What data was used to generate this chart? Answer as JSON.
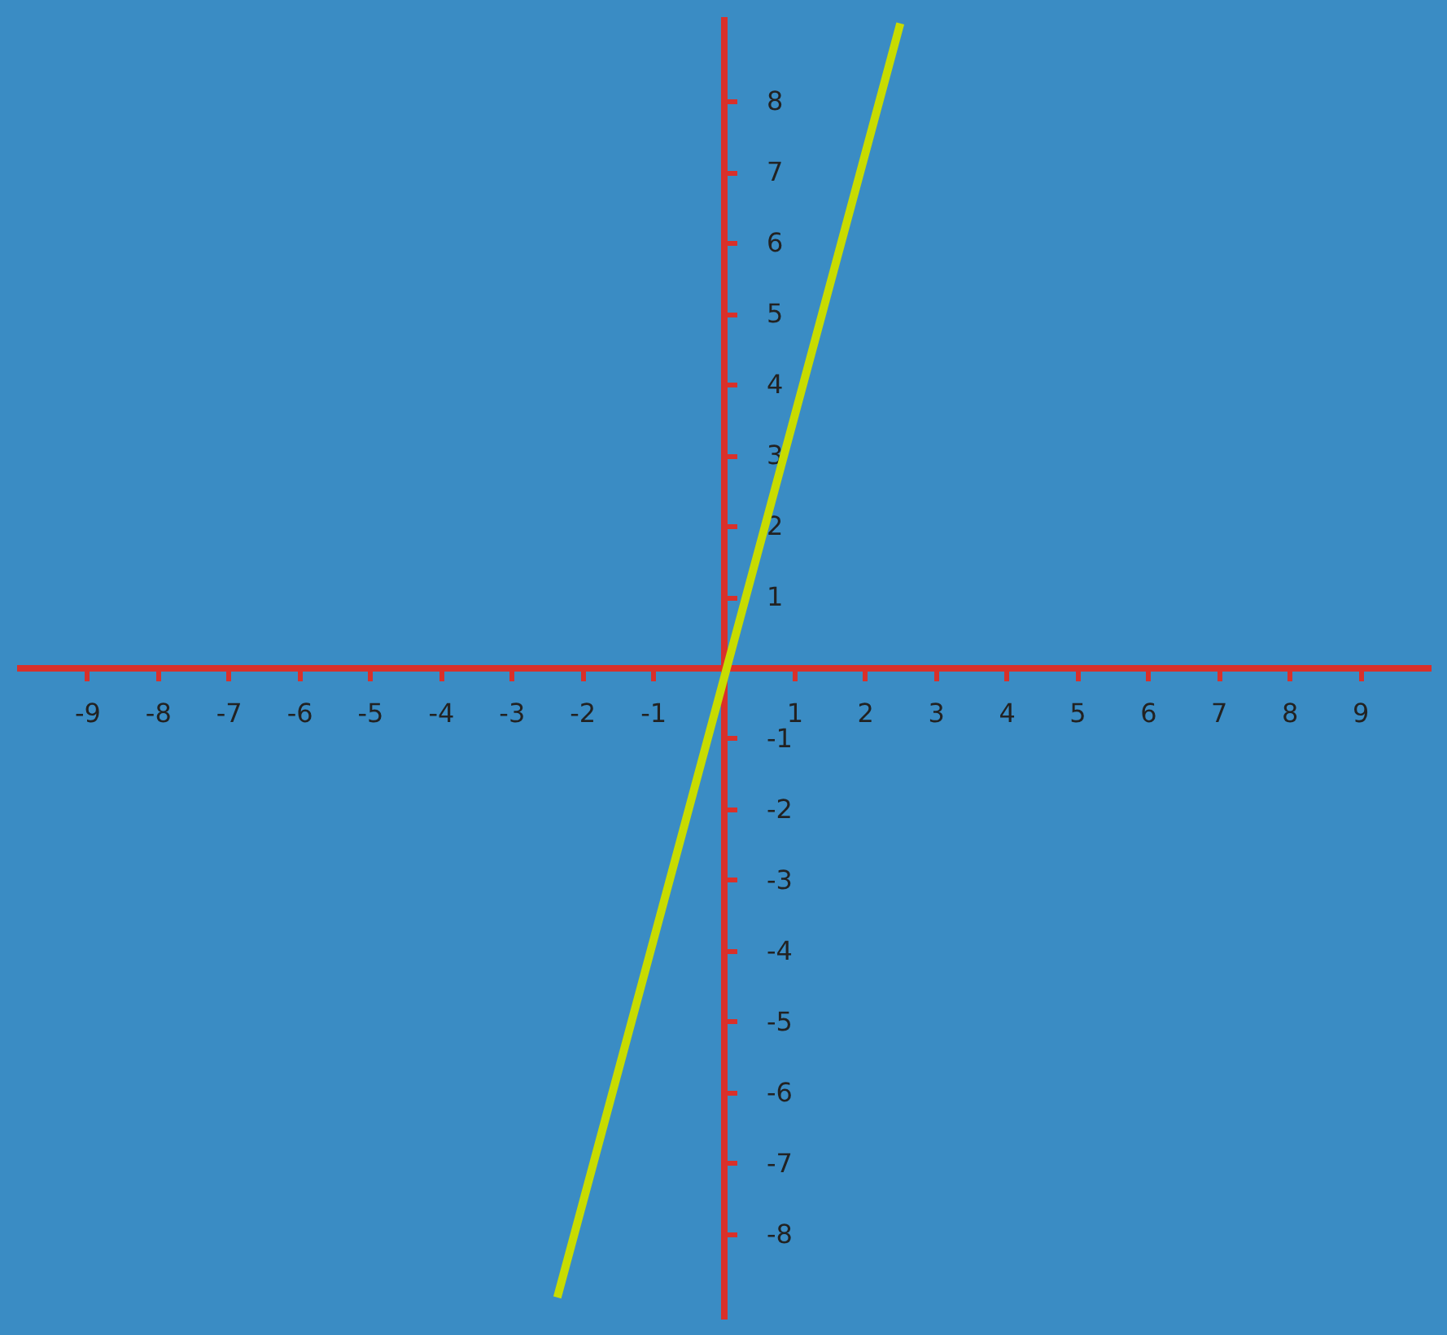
{
  "chart_data": {
    "type": "line",
    "series": [
      {
        "color": "#c8dc00",
        "x": [
          -2.35,
          2.5
        ],
        "values": [
          -8.9,
          9.1
        ]
      }
    ],
    "xlim": [
      -10,
      10
    ],
    "ylim": [
      -9.2,
      9.2
    ],
    "xticks": [
      -9,
      -8,
      -7,
      -6,
      -5,
      -4,
      -3,
      -2,
      -1,
      1,
      2,
      3,
      4,
      5,
      6,
      7,
      8,
      9
    ],
    "yticks": [
      -8,
      -7,
      -6,
      -5,
      -4,
      -3,
      -2,
      -1,
      1,
      2,
      3,
      4,
      5,
      6,
      7,
      8
    ],
    "marker": "none",
    "line_style": "solid"
  }
}
